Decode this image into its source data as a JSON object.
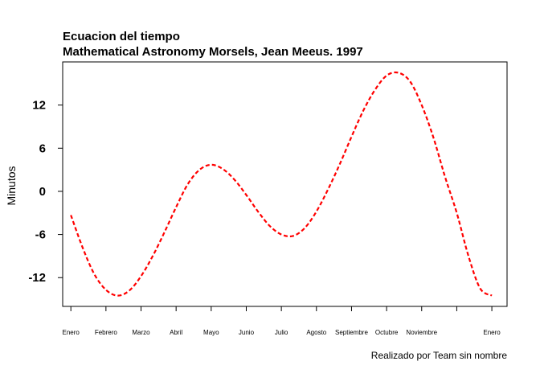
{
  "chart_data": {
    "type": "line",
    "title": "Ecuacion del tiempo",
    "subtitle": "Mathematical Astronomy Morsels, Jean Meeus. 1997",
    "xlabel": "",
    "ylabel": "Minutos",
    "caption": "Realizado por Team sin nombre",
    "xlim": [
      -7,
      373
    ],
    "ylim": [
      -16,
      18
    ],
    "yticks": [
      -12,
      -6,
      0,
      6,
      12
    ],
    "ytick_labels": [
      "-12",
      "-6",
      "0",
      "6",
      "12"
    ],
    "xticks": [
      0,
      30,
      60,
      90,
      120,
      150,
      180,
      210,
      240,
      270,
      300,
      330,
      360
    ],
    "xtick_labels": [
      "Enero",
      "Febrero",
      "Marzo",
      "Abril",
      "Mayo",
      "Junio",
      "Julio",
      "Agosto",
      "Septiembre",
      "Octubre",
      "Noviembre",
      "",
      "Enero"
    ],
    "grid": false,
    "legend": "none",
    "series": [
      {
        "color": "#ff0000",
        "line_style": "dashed",
        "x": [
          0,
          10,
          20,
          30,
          40,
          50,
          60,
          70,
          80,
          90,
          100,
          110,
          120,
          130,
          140,
          150,
          160,
          170,
          180,
          190,
          200,
          210,
          220,
          230,
          240,
          250,
          260,
          270,
          280,
          290,
          300,
          310,
          320,
          330,
          340,
          350,
          360
        ],
        "y": [
          -3.3,
          -7.8,
          -11.5,
          -13.7,
          -14.5,
          -13.8,
          -11.8,
          -9.0,
          -5.7,
          -2.2,
          1.0,
          3.0,
          3.7,
          3.1,
          1.6,
          -0.5,
          -2.8,
          -4.8,
          -6.0,
          -6.2,
          -5.1,
          -2.8,
          0.3,
          3.8,
          7.6,
          11.2,
          14.1,
          16.1,
          16.5,
          15.3,
          12.0,
          7.5,
          2.0,
          -3.0,
          -9.0,
          -13.5,
          -14.5
        ]
      }
    ]
  }
}
